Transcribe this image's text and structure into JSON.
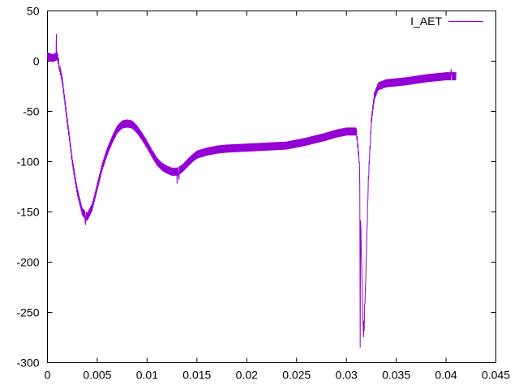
{
  "chart_data": {
    "type": "line",
    "title": "",
    "xlabel": "",
    "ylabel": "",
    "xlim": [
      0,
      0.045
    ],
    "ylim": [
      -300,
      50
    ],
    "xticks": [
      0,
      0.005,
      0.01,
      0.015,
      0.02,
      0.025,
      0.03,
      0.035,
      0.04,
      0.045
    ],
    "xtick_labels": [
      "0",
      "0.005",
      "0.01",
      "0.015",
      "0.02",
      "0.025",
      "0.03",
      "0.035",
      "0.04",
      "0.045"
    ],
    "yticks": [
      50,
      0,
      -50,
      -100,
      -150,
      -200,
      -250,
      -300
    ],
    "ytick_labels": [
      "50",
      "0",
      "-50",
      "-100",
      "-150",
      "-200",
      "-250",
      "-300"
    ],
    "grid": false,
    "legend_position": "top-right",
    "series": [
      {
        "name": "I_AET",
        "color": "#9400d3",
        "noise_band": 8,
        "points": [
          [
            0.0,
            5
          ],
          [
            0.0005,
            3
          ],
          [
            0.001,
            5
          ],
          [
            0.0015,
            -20
          ],
          [
            0.002,
            -60
          ],
          [
            0.0025,
            -100
          ],
          [
            0.003,
            -130
          ],
          [
            0.0035,
            -150
          ],
          [
            0.004,
            -155
          ],
          [
            0.0045,
            -145
          ],
          [
            0.005,
            -125
          ],
          [
            0.0055,
            -105
          ],
          [
            0.006,
            -90
          ],
          [
            0.0065,
            -78
          ],
          [
            0.007,
            -68
          ],
          [
            0.0075,
            -63
          ],
          [
            0.008,
            -62
          ],
          [
            0.0085,
            -63
          ],
          [
            0.009,
            -68
          ],
          [
            0.0095,
            -75
          ],
          [
            0.01,
            -83
          ],
          [
            0.0105,
            -92
          ],
          [
            0.011,
            -100
          ],
          [
            0.0115,
            -105
          ],
          [
            0.012,
            -108
          ],
          [
            0.0125,
            -110
          ],
          [
            0.013,
            -110
          ],
          [
            0.0135,
            -107
          ],
          [
            0.014,
            -102
          ],
          [
            0.0145,
            -97
          ],
          [
            0.015,
            -93
          ],
          [
            0.016,
            -90
          ],
          [
            0.017,
            -88
          ],
          [
            0.018,
            -87
          ],
          [
            0.02,
            -86
          ],
          [
            0.022,
            -85
          ],
          [
            0.024,
            -84
          ],
          [
            0.026,
            -80
          ],
          [
            0.028,
            -75
          ],
          [
            0.029,
            -72
          ],
          [
            0.03,
            -70
          ],
          [
            0.031,
            -70
          ],
          [
            0.0313,
            -100
          ],
          [
            0.0315,
            -190
          ],
          [
            0.0317,
            -275
          ],
          [
            0.0319,
            -230
          ],
          [
            0.0322,
            -120
          ],
          [
            0.0325,
            -60
          ],
          [
            0.0328,
            -35
          ],
          [
            0.0332,
            -25
          ],
          [
            0.034,
            -22
          ],
          [
            0.036,
            -20
          ],
          [
            0.038,
            -17
          ],
          [
            0.04,
            -15
          ],
          [
            0.041,
            -15
          ]
        ],
        "spikes": [
          [
            0.0009,
            27
          ],
          [
            0.0012,
            -8
          ],
          [
            0.0038,
            -163
          ],
          [
            0.013,
            -122
          ],
          [
            0.0132,
            -118
          ],
          [
            0.0314,
            -285
          ],
          [
            0.0318,
            -268
          ],
          [
            0.0405,
            -8
          ]
        ]
      }
    ]
  }
}
